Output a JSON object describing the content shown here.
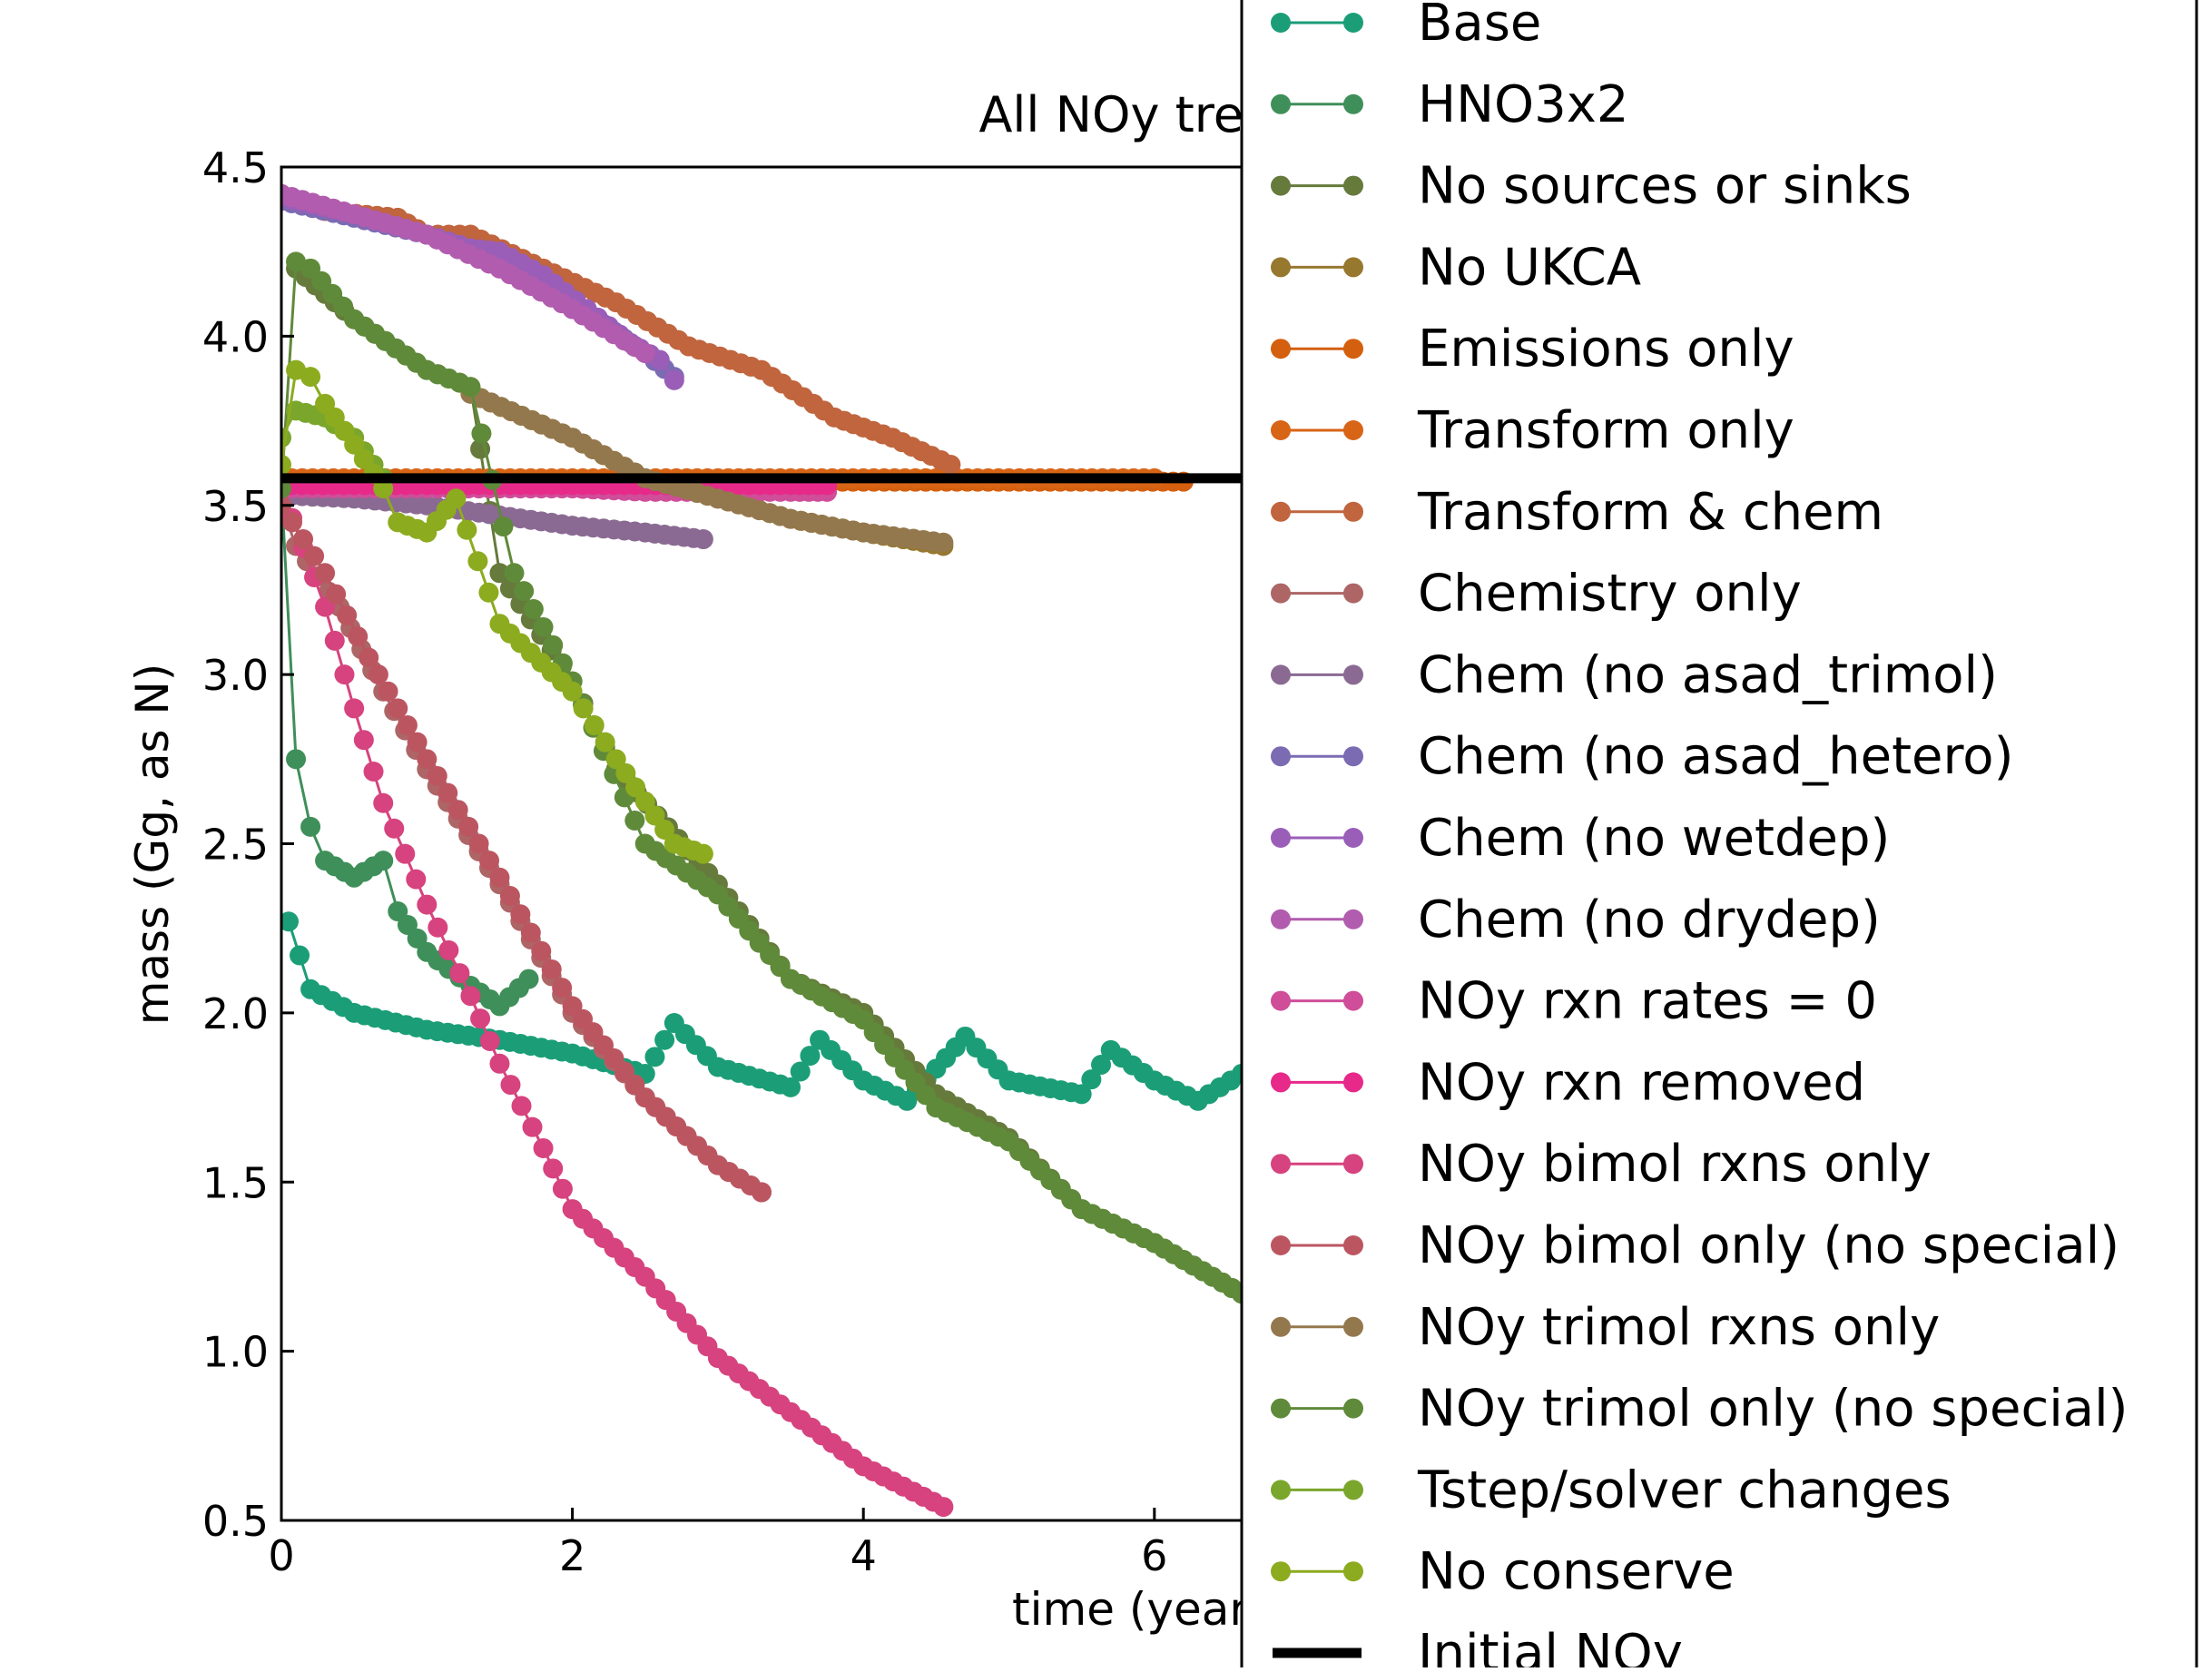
{
  "chart_data": {
    "type": "line",
    "title": "All NOy tre",
    "xlabel": "time (year",
    "ylabel": "mass (Gg, as N)",
    "xlim": [
      0,
      6.6
    ],
    "ylim": [
      0.5,
      4.5
    ],
    "xticks": [
      0,
      2,
      4,
      6
    ],
    "xtick_labels": [
      "0",
      "2",
      "4",
      "6"
    ],
    "yticks": [
      0.5,
      1.0,
      1.5,
      2.0,
      2.5,
      3.0,
      3.5,
      4.0,
      4.5
    ],
    "ytick_labels": [
      "0.5",
      "1.0",
      "1.5",
      "2.0",
      "2.5",
      "3.0",
      "3.5",
      "4.0",
      "4.5"
    ],
    "grid": false,
    "legend_position": "right",
    "reference_line": {
      "name": "Initial NOy",
      "value": 3.58,
      "color": "#000000"
    },
    "series": [
      {
        "name": "Base",
        "color": "#1b9e77",
        "marker": true,
        "x": [
          0.05,
          0.2,
          0.5,
          1.0,
          1.5,
          2.0,
          2.5,
          2.7,
          3.0,
          3.5,
          3.7,
          4.0,
          4.3,
          4.7,
          5.0,
          5.5,
          5.7,
          6.0,
          6.3,
          6.6
        ],
        "y": [
          2.27,
          2.07,
          2.0,
          1.95,
          1.92,
          1.88,
          1.82,
          1.97,
          1.84,
          1.78,
          1.92,
          1.8,
          1.74,
          1.93,
          1.8,
          1.76,
          1.89,
          1.8,
          1.74,
          1.82
        ]
      },
      {
        "name": "HNO3x2",
        "color": "#3f8f5a",
        "marker": true,
        "x": [
          0.0,
          0.1,
          0.2,
          0.3,
          0.5,
          0.7,
          0.8,
          1.0,
          1.3,
          1.5,
          1.7
        ],
        "y": [
          3.55,
          2.75,
          2.55,
          2.45,
          2.4,
          2.45,
          2.3,
          2.18,
          2.08,
          2.02,
          2.1
        ]
      },
      {
        "name": "No sources or sinks",
        "color": "#667a3c",
        "marker": true,
        "x": [
          0.1,
          0.5,
          1.0,
          1.3,
          1.5,
          2.0,
          2.3,
          2.8,
          3.0,
          3.5,
          4.0,
          4.5,
          5.0,
          5.5,
          6.0,
          6.6
        ],
        "y": [
          4.2,
          4.05,
          3.9,
          3.85,
          3.3,
          2.98,
          2.72,
          2.48,
          2.38,
          2.1,
          2.0,
          1.76,
          1.63,
          1.42,
          1.32,
          1.17
        ]
      },
      {
        "name": "No UKCA",
        "color": "#96782e",
        "marker": true,
        "x": [
          1.3,
          2.0,
          2.5,
          3.0,
          3.5,
          4.0,
          4.55
        ],
        "y": [
          3.83,
          3.7,
          3.58,
          3.52,
          3.46,
          3.42,
          3.38
        ]
      },
      {
        "name": "Emissions only",
        "color": "#d45f0e",
        "marker": true,
        "x": [
          0.0,
          1.0,
          2.0,
          3.0,
          4.0,
          5.0,
          6.2
        ],
        "y": [
          3.57,
          3.57,
          3.57,
          3.57,
          3.57,
          3.57,
          3.57
        ]
      },
      {
        "name": "Transform only",
        "color": "#d86416",
        "marker": true,
        "x": [
          0.0,
          1.0,
          2.0,
          3.0,
          4.0,
          5.0,
          6.0
        ],
        "y": [
          3.58,
          3.58,
          3.58,
          3.58,
          3.58,
          3.58,
          3.58
        ]
      },
      {
        "name": "Transform & chem",
        "color": "#c0653e",
        "marker": true,
        "x": [
          0.0,
          0.3,
          0.8,
          1.0,
          1.3,
          1.8,
          2.3,
          2.8,
          3.3,
          3.8,
          4.2,
          4.6
        ],
        "y": [
          4.42,
          4.37,
          4.35,
          4.3,
          4.3,
          4.2,
          4.1,
          3.97,
          3.9,
          3.76,
          3.7,
          3.62
        ]
      },
      {
        "name": "Chemistry only",
        "color": "#ad6566",
        "marker": true,
        "x": [
          0.0,
          0.1,
          0.4,
          0.7,
          1.0,
          1.5,
          2.0,
          2.5,
          3.0,
          3.3
        ],
        "y": [
          3.5,
          3.38,
          3.2,
          2.95,
          2.72,
          2.38,
          2.0,
          1.75,
          1.55,
          1.47
        ]
      },
      {
        "name": "Chem (no asad_trimol)",
        "color": "#8a6a92",
        "marker": true,
        "x": [
          0.0,
          0.5,
          1.0,
          1.5,
          2.0,
          2.5,
          2.9
        ],
        "y": [
          3.53,
          3.52,
          3.5,
          3.47,
          3.44,
          3.42,
          3.4
        ]
      },
      {
        "name": "Chem (no asad_hetero)",
        "color": "#7b6bb3",
        "marker": true,
        "x": [
          0.0,
          0.5,
          1.0,
          1.5,
          2.0,
          2.5,
          2.7
        ],
        "y": [
          4.4,
          4.35,
          4.3,
          4.22,
          4.1,
          3.95,
          3.88
        ]
      },
      {
        "name": "Chem (no wetdep)",
        "color": "#9a5eb8",
        "marker": true,
        "x": [
          0.0,
          0.5,
          1.0,
          1.3,
          1.5,
          1.8,
          2.1,
          2.4,
          2.6,
          2.7
        ],
        "y": [
          4.41,
          4.36,
          4.3,
          4.26,
          4.25,
          4.18,
          4.08,
          3.98,
          3.93,
          3.87
        ]
      },
      {
        "name": "Chem (no drydep)",
        "color": "#b15cae",
        "marker": true,
        "x": [
          0.0,
          0.5,
          1.0,
          1.5,
          2.0,
          2.5
        ],
        "y": [
          4.42,
          4.36,
          4.3,
          4.2,
          4.08,
          3.95
        ]
      },
      {
        "name": "NOy rxn rates = 0",
        "color": "#cf4d99",
        "marker": true,
        "x": [
          0.0,
          0.5,
          1.0,
          1.5,
          2.0,
          2.5,
          3.0,
          3.5,
          3.75
        ],
        "y": [
          3.55,
          3.55,
          3.55,
          3.55,
          3.55,
          3.54,
          3.54,
          3.54,
          3.54
        ]
      },
      {
        "name": "NOy rxn removed",
        "color": "#e7298a",
        "marker": true,
        "x": [
          0.0,
          0.5,
          1.0,
          1.5,
          2.0,
          2.5,
          3.0,
          3.5,
          3.75
        ],
        "y": [
          3.56,
          3.56,
          3.56,
          3.56,
          3.56,
          3.56,
          3.56,
          3.56,
          3.56
        ]
      },
      {
        "name": "NOy bimol rxns only",
        "color": "#d6437e",
        "marker": true,
        "x": [
          0.0,
          0.3,
          0.5,
          0.7,
          1.0,
          1.3,
          1.5,
          1.8,
          2.0,
          2.5,
          3.0,
          3.5,
          4.0,
          4.55
        ],
        "y": [
          3.55,
          3.2,
          2.9,
          2.62,
          2.32,
          2.05,
          1.85,
          1.6,
          1.42,
          1.22,
          0.98,
          0.82,
          0.66,
          0.54
        ]
      },
      {
        "name": "NOy bimol only (no special)",
        "color": "#bb5661",
        "marker": true,
        "x": [
          0.0,
          0.3,
          0.6,
          1.0,
          1.5,
          2.0,
          2.5,
          3.0,
          3.3
        ],
        "y": [
          3.5,
          3.3,
          3.05,
          2.75,
          2.4,
          2.02,
          1.75,
          1.55,
          1.47
        ]
      },
      {
        "name": "NOy trimol rxns only",
        "color": "#94784d",
        "marker": true,
        "x": [
          1.3,
          2.0,
          2.5,
          3.0,
          3.5,
          4.0,
          4.55
        ],
        "y": [
          3.83,
          3.7,
          3.58,
          3.52,
          3.46,
          3.42,
          3.39
        ]
      },
      {
        "name": "NOy trimol only (no special)",
        "color": "#5f8a3a",
        "marker": true,
        "x": [
          0.0,
          0.1,
          0.2,
          0.5,
          1.0,
          1.3,
          1.6,
          2.0,
          2.5,
          3.0,
          3.5,
          4.0,
          4.5,
          5.0,
          5.5,
          6.0,
          6.6
        ],
        "y": [
          3.55,
          4.22,
          4.2,
          4.05,
          3.9,
          3.85,
          3.3,
          2.98,
          2.5,
          2.35,
          2.1,
          1.98,
          1.72,
          1.62,
          1.42,
          1.32,
          1.17
        ]
      },
      {
        "name": "Tstep/solver changes",
        "color": "#7aa62c",
        "marker": true,
        "x": [
          0.0,
          0.1,
          0.3,
          0.5,
          0.7
        ],
        "y": [
          3.7,
          3.78,
          3.76,
          3.7,
          3.58
        ]
      },
      {
        "name": "No conserve",
        "color": "#8cab1f",
        "marker": true,
        "x": [
          0.0,
          0.1,
          0.2,
          0.3,
          0.5,
          0.7,
          0.8,
          1.0,
          1.2,
          1.5,
          2.0,
          2.3,
          2.7,
          2.9
        ],
        "y": [
          3.62,
          3.9,
          3.88,
          3.8,
          3.68,
          3.55,
          3.45,
          3.42,
          3.52,
          3.15,
          2.95,
          2.75,
          2.5,
          2.47
        ]
      }
    ]
  }
}
